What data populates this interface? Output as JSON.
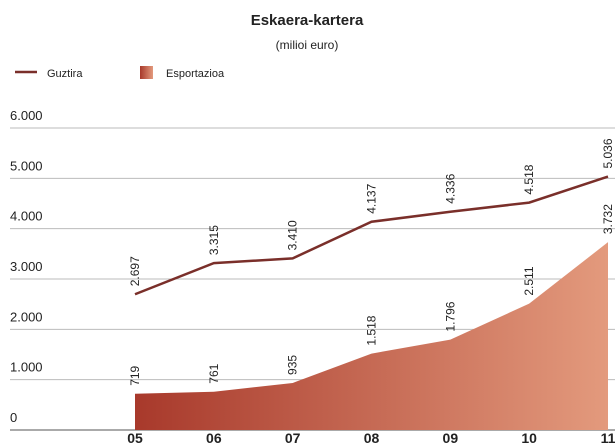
{
  "chart_data": {
    "type": "line",
    "title": "Eskaera-kartera",
    "subtitle": "(milioi euro)",
    "categories": [
      "05",
      "06",
      "07",
      "08",
      "09",
      "10",
      "11"
    ],
    "series": [
      {
        "name": "Guztira",
        "kind": "line",
        "color": "#7a2f2a",
        "values": [
          2697,
          3315,
          3410,
          4137,
          4336,
          4518,
          5036
        ],
        "value_labels": [
          "2.697",
          "3.315",
          "3.410",
          "4.137",
          "4.336",
          "4.518",
          "5.036"
        ]
      },
      {
        "name": "Esportazioa",
        "kind": "area",
        "color": [
          "#a8392b",
          "#e39a7d"
        ],
        "values": [
          719,
          761,
          935,
          1518,
          1796,
          2511,
          3732
        ],
        "value_labels": [
          "719",
          "761",
          "935",
          "1.518",
          "1.796",
          "2.511",
          "3.732"
        ]
      }
    ],
    "ylim": [
      0,
      6000
    ],
    "yticks": [
      0,
      {
        "value": 1000,
        "label": "1.000"
      },
      {
        "value": 2000,
        "label": "2.000"
      },
      {
        "value": 3000,
        "label": "3.000"
      },
      {
        "value": 4000,
        "label": "4.000"
      },
      {
        "value": 5000,
        "label": "5.000"
      },
      {
        "value": 6000,
        "label": "6.000"
      }
    ],
    "grid": true
  }
}
